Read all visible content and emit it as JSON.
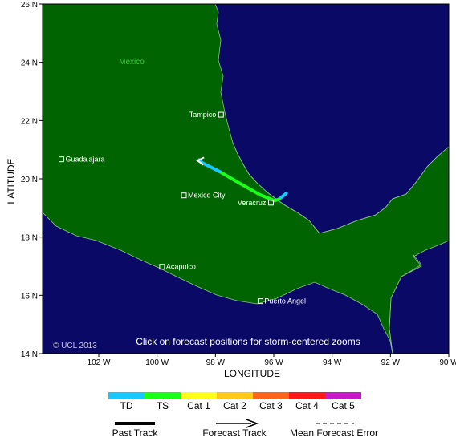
{
  "map": {
    "country_label": "Mexico",
    "note": "Click on forecast positions for storm-centered zooms",
    "copyright": "© UCL 2013",
    "colors": {
      "ocean": "#0a0a66",
      "land": "#006400",
      "border": "#8fbf8f"
    }
  },
  "axes": {
    "xlabel": "LONGITUDE",
    "ylabel": "LATITUDE",
    "x_ticks": [
      "102 W",
      "100 W",
      "98 W",
      "96 W",
      "94 W",
      "92 W",
      "90 W"
    ],
    "y_ticks": [
      "26 N",
      "24 N",
      "22 N",
      "20 N",
      "18 N",
      "16 N",
      "14 N"
    ],
    "lon_range": [
      -104,
      -90
    ],
    "lat_range": [
      14,
      26
    ]
  },
  "cities": [
    {
      "name": "Tampico",
      "lon": -97.85,
      "lat": 22.2
    },
    {
      "name": "Guadalajara",
      "lon": -103.35,
      "lat": 20.67
    },
    {
      "name": "Mexico City",
      "lon": -99.13,
      "lat": 19.43
    },
    {
      "name": "Veracruz",
      "lon": -96.13,
      "lat": 19.18
    },
    {
      "name": "Acapulco",
      "lon": -99.88,
      "lat": 16.98
    },
    {
      "name": "Puerto Angel",
      "lon": -96.49,
      "lat": 15.8
    }
  ],
  "track": {
    "points": [
      {
        "lon": -95.6,
        "lat": 19.5,
        "category": "TD"
      },
      {
        "lon": -95.85,
        "lat": 19.3,
        "category": "TD"
      },
      {
        "lon": -96.0,
        "lat": 19.25,
        "category": "TS"
      },
      {
        "lon": -96.5,
        "lat": 19.45,
        "category": "TS"
      },
      {
        "lon": -97.3,
        "lat": 19.9,
        "category": "TS"
      },
      {
        "lon": -97.9,
        "lat": 20.25,
        "category": "TS"
      },
      {
        "lon": -98.5,
        "lat": 20.55,
        "category": "TD"
      },
      {
        "lon": -98.6,
        "lat": 20.65,
        "category": "TD"
      }
    ]
  },
  "category_scale": [
    {
      "label": "TD",
      "color": "#19c8ff"
    },
    {
      "label": "TS",
      "color": "#19ff19"
    },
    {
      "label": "Cat 1",
      "color": "#ffff19"
    },
    {
      "label": "Cat 2",
      "color": "#ffc819"
    },
    {
      "label": "Cat 3",
      "color": "#ff6419"
    },
    {
      "label": "Cat 4",
      "color": "#ff1919"
    },
    {
      "label": "Cat 5",
      "color": "#c819c8"
    }
  ],
  "legend": {
    "past_track": "Past Track",
    "forecast_track": "Forecast Track",
    "mean_error": "Mean Forecast Error"
  }
}
